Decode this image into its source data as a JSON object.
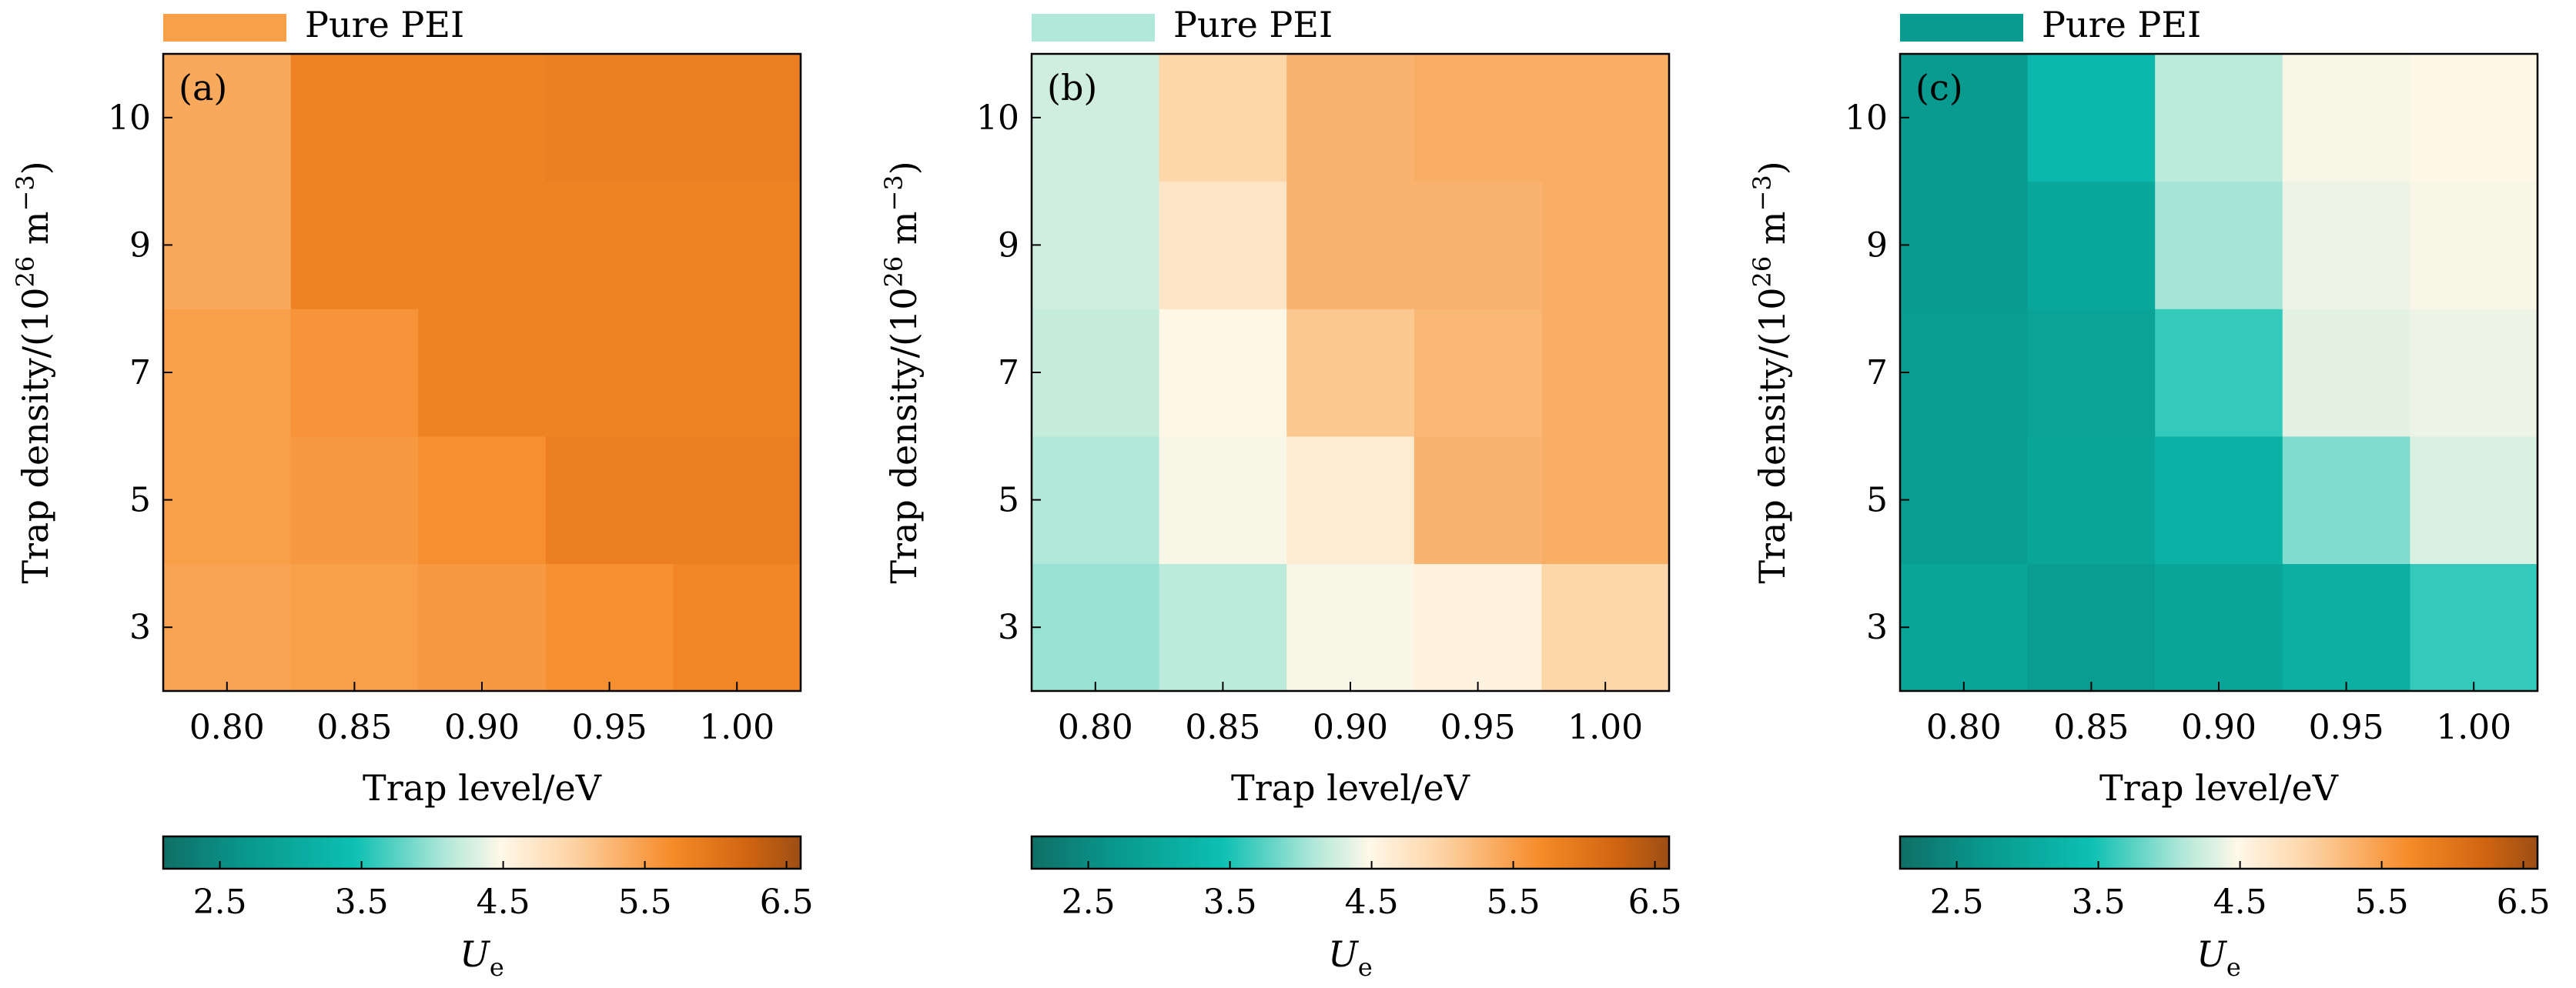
{
  "chart_data": [
    {
      "type": "heatmap",
      "panel_label": "(a)",
      "legend_label": "Pure PEI",
      "legend_value": 5.5,
      "x_categories": [
        "0.80",
        "0.85",
        "0.90",
        "0.95",
        "1.00"
      ],
      "y_categories": [
        "3",
        "5",
        "7",
        "9",
        "10"
      ],
      "xlabel": "Trap level/eV",
      "ylabel_parts": {
        "main": "Trap density/(10",
        "exp1": "26",
        "mid": " m",
        "exp2": "−3",
        "end": ")"
      },
      "values": [
        [
          5.45,
          5.5,
          5.55,
          5.65,
          5.75
        ],
        [
          5.5,
          5.55,
          5.65,
          5.85,
          5.85
        ],
        [
          5.5,
          5.6,
          5.8,
          5.8,
          5.8
        ],
        [
          5.4,
          5.8,
          5.8,
          5.8,
          5.8
        ],
        [
          5.4,
          5.8,
          5.8,
          5.85,
          5.85
        ]
      ],
      "colorbar": {
        "label": "U",
        "label_sub": "e",
        "ticks": [
          "2.5",
          "3.5",
          "4.5",
          "5.5",
          "6.5"
        ],
        "range": [
          2.1,
          6.6
        ]
      }
    },
    {
      "type": "heatmap",
      "panel_label": "(b)",
      "legend_label": "Pure PEI",
      "legend_value": 4.1,
      "x_categories": [
        "0.80",
        "0.85",
        "0.90",
        "0.95",
        "1.00"
      ],
      "y_categories": [
        "3",
        "5",
        "7",
        "9",
        "10"
      ],
      "xlabel": "Trap level/eV",
      "ylabel_parts": {
        "main": "Trap density/(10",
        "exp1": "26",
        "mid": " m",
        "exp2": "−3",
        "end": ")"
      },
      "values": [
        [
          4.0,
          4.15,
          4.45,
          4.55,
          4.95
        ],
        [
          4.1,
          4.45,
          4.65,
          5.3,
          5.35
        ],
        [
          4.2,
          4.5,
          5.1,
          5.25,
          5.35
        ],
        [
          4.25,
          4.75,
          5.3,
          5.3,
          5.35
        ],
        [
          4.25,
          4.95,
          5.3,
          5.35,
          5.35
        ]
      ],
      "colorbar": {
        "label": "U",
        "label_sub": "e",
        "ticks": [
          "2.5",
          "3.5",
          "4.5",
          "5.5",
          "6.5"
        ],
        "range": [
          2.1,
          6.6
        ]
      }
    },
    {
      "type": "heatmap",
      "panel_label": "(c)",
      "legend_label": "Pure PEI",
      "legend_value": 2.75,
      "x_categories": [
        "0.80",
        "0.85",
        "0.90",
        "0.95",
        "1.00"
      ],
      "y_categories": [
        "3",
        "5",
        "7",
        "9",
        "10"
      ],
      "xlabel": "Trap level/eV",
      "ylabel_parts": {
        "main": "Trap density/(10",
        "exp1": "26",
        "mid": " m",
        "exp2": "−3",
        "end": ")"
      },
      "values": [
        [
          2.95,
          2.8,
          2.95,
          3.15,
          3.6
        ],
        [
          2.8,
          2.95,
          3.2,
          3.9,
          4.3
        ],
        [
          2.8,
          2.9,
          3.6,
          4.35,
          4.4
        ],
        [
          2.75,
          3.0,
          4.05,
          4.4,
          4.45
        ],
        [
          2.75,
          3.3,
          4.15,
          4.45,
          4.5
        ]
      ],
      "colorbar": {
        "label": "U",
        "label_sub": "e",
        "ticks": [
          "2.5",
          "3.5",
          "4.5",
          "5.5",
          "6.5"
        ],
        "range": [
          2.1,
          6.6
        ]
      }
    }
  ]
}
